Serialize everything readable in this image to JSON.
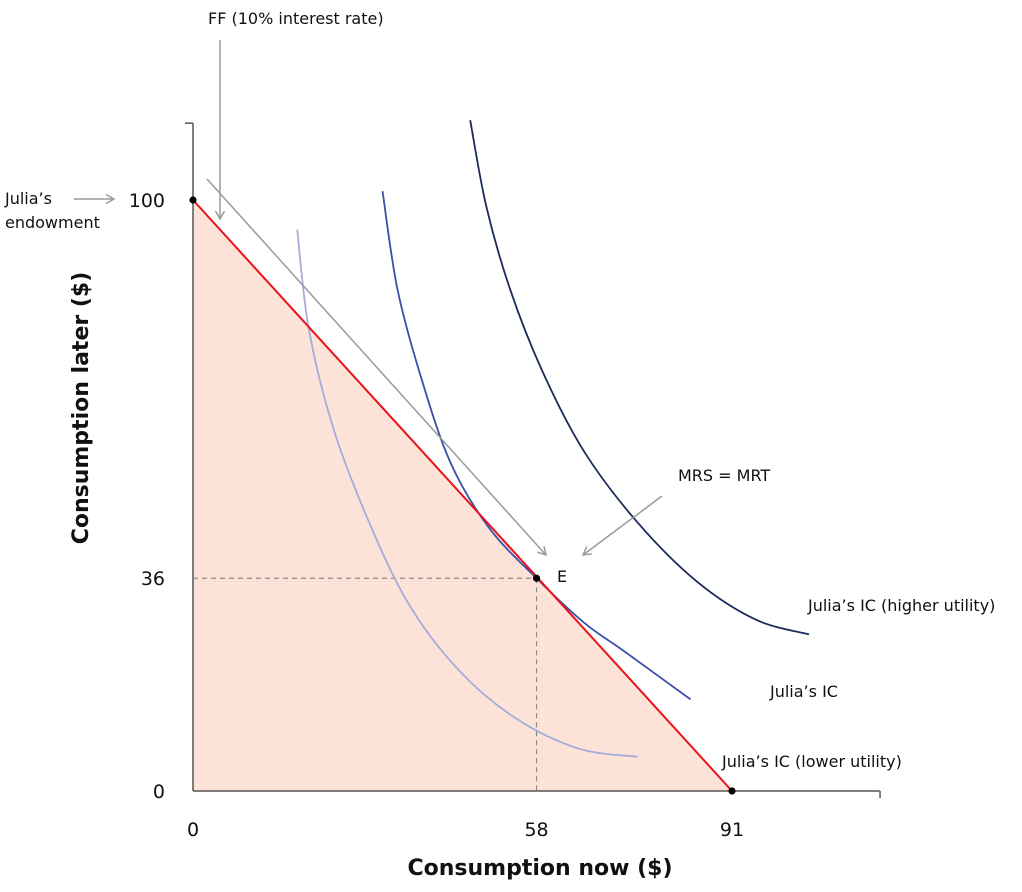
{
  "chart_data": {
    "type": "line",
    "title": "",
    "xlabel": "Consumption now ($)",
    "ylabel": "Consumption later ($)",
    "xlim": [
      0,
      116
    ],
    "ylim": [
      0,
      113
    ],
    "x_ticks": [
      {
        "value": 0,
        "label": "0"
      },
      {
        "value": 58,
        "label": "58"
      },
      {
        "value": 91,
        "label": "91"
      }
    ],
    "y_ticks": [
      {
        "value": 0,
        "label": "0"
      },
      {
        "value": 36,
        "label": "36"
      },
      {
        "value": 100,
        "label": "100"
      }
    ],
    "grid": false,
    "feasible_frontier": {
      "label": "FF (10% interest rate)",
      "points": [
        [
          0,
          100
        ],
        [
          91,
          0
        ]
      ],
      "color": "#e8121a",
      "fill_color": "#fde3d7"
    },
    "series": [
      {
        "name": "Julia’s IC (lower utility)",
        "color": "#a4acdc",
        "points": [
          [
            17.6,
            95
          ],
          [
            19.5,
            78.5
          ],
          [
            23.5,
            62
          ],
          [
            29.5,
            46
          ],
          [
            36.5,
            31.5
          ],
          [
            45,
            20.3
          ],
          [
            54.5,
            12.3
          ],
          [
            65,
            7.2
          ],
          [
            75,
            5.8
          ]
        ]
      },
      {
        "name": "Julia’s IC",
        "color": "#3b4fa8",
        "points": [
          [
            32,
            101.5
          ],
          [
            34.5,
            85
          ],
          [
            38.5,
            70
          ],
          [
            43.5,
            55.5
          ],
          [
            50,
            44.5
          ],
          [
            58,
            36
          ],
          [
            66,
            28.5
          ],
          [
            73,
            23.5
          ],
          [
            84,
            15.5
          ]
        ]
      },
      {
        "name": "Julia’s IC (higher utility)",
        "color": "#1c2a5e",
        "points": [
          [
            46.8,
            113.5
          ],
          [
            49.5,
            99
          ],
          [
            53.5,
            85
          ],
          [
            59,
            71
          ],
          [
            66,
            57.5
          ],
          [
            75,
            45.5
          ],
          [
            85,
            35.5
          ],
          [
            95,
            29
          ],
          [
            104,
            26.5
          ]
        ]
      }
    ],
    "points": [
      {
        "name": "endowment",
        "x": 0,
        "y": 100
      },
      {
        "name": "E",
        "x": 58,
        "y": 36,
        "label": "E"
      },
      {
        "name": "x-intercept",
        "x": 91,
        "y": 0
      }
    ],
    "guides": [
      {
        "x": 58,
        "y": 36
      }
    ],
    "annotations": {
      "endowment_line1": "Julia’s",
      "endowment_line2": "endowment",
      "mrs_mrt": "MRS = MRT",
      "e_label": "E"
    }
  }
}
